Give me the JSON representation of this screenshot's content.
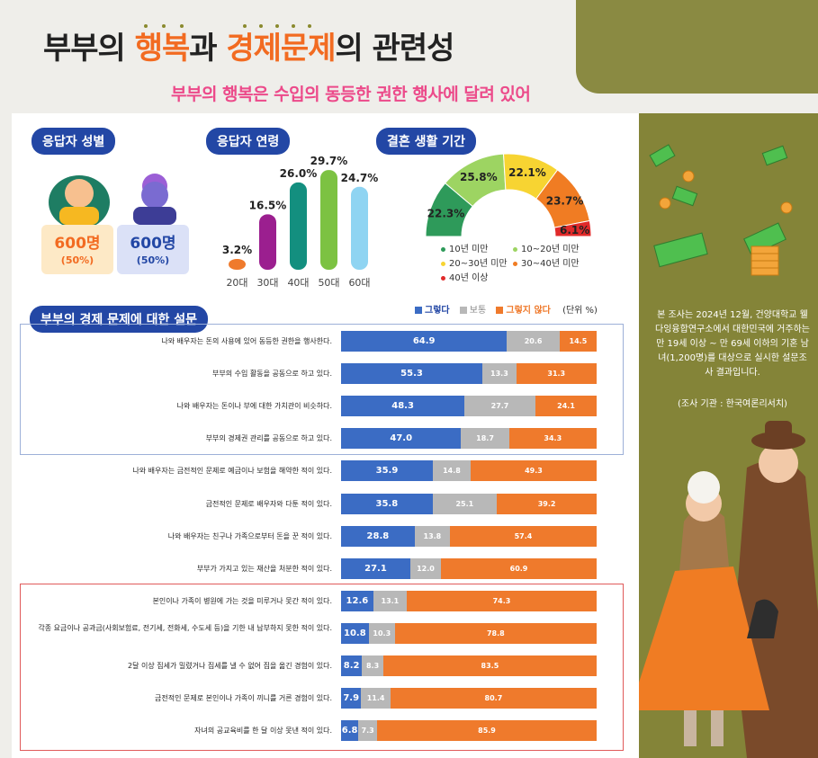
{
  "header": {
    "title_part1": "부부의 ",
    "title_part2": "행복",
    "title_part3": "과 ",
    "title_part4": "경제문제",
    "title_part5": "의 관련성",
    "subtitle": "부부의 행복은 수입의 동등한 권한 행사에 달려 있어"
  },
  "sections": {
    "gender": "응답자 성별",
    "age": "응답자 연령",
    "marriage": "결혼 생활 기간",
    "survey": "부부의 경제 문제에 대한 설문"
  },
  "colors": {
    "navy": "#2347a5",
    "blue": "#3b6cc4",
    "gray": "#b8b8b8",
    "orange": "#ef7a2c",
    "olive": "#848438"
  },
  "gender": {
    "female": {
      "count": "600명",
      "pct": "(50%)"
    },
    "male": {
      "count": "600명",
      "pct": "(50%)"
    }
  },
  "chart_data": [
    {
      "type": "bar",
      "title": "응답자 연령",
      "categories": [
        "20대",
        "30대",
        "40대",
        "50대",
        "60대"
      ],
      "values": [
        3.2,
        16.5,
        26.0,
        29.7,
        24.7
      ],
      "labels": [
        "3.2%",
        "16.5%",
        "26.0%",
        "29.7%",
        "24.7%"
      ],
      "colors": [
        "#ef7a2c",
        "#9b1f8f",
        "#138f7f",
        "#7cc242",
        "#8fd4f2"
      ]
    },
    {
      "type": "pie",
      "title": "결혼 생활 기간",
      "categories": [
        "10년 미만",
        "10~20년 미만",
        "20~30년 미만",
        "30~40년 미만",
        "40년 이상"
      ],
      "values": [
        22.3,
        25.8,
        22.1,
        23.7,
        6.1
      ],
      "labels": [
        "22.3%",
        "25.8%",
        "22.1%",
        "23.7%",
        "6.1%"
      ],
      "colors": [
        "#2e9a5a",
        "#9dd462",
        "#f7d432",
        "#f07c23",
        "#e02a2a"
      ]
    },
    {
      "type": "bar",
      "title": "부부의 경제 문제에 대한 설문",
      "unit": "(단위 %)",
      "series": [
        {
          "name": "그렇다",
          "color": "#3b6cc4"
        },
        {
          "name": "보통",
          "color": "#b8b8b8"
        },
        {
          "name": "그렇지 않다",
          "color": "#ef7a2c"
        }
      ],
      "rows": [
        {
          "label": "나와 배우자는 돈의 사용에 있어 동등한 권한을 행사한다.",
          "values": [
            64.9,
            20.6,
            14.5
          ],
          "labels": [
            "64.9",
            "20.6",
            "14.5"
          ]
        },
        {
          "label": "부부의 수입 활동을 공동으로 하고 있다.",
          "values": [
            55.3,
            13.3,
            31.3
          ],
          "labels": [
            "55.3",
            "13.3",
            "31.3"
          ]
        },
        {
          "label": "나와 배우자는 돈이나 부에 대한 가치관이 비슷하다.",
          "values": [
            48.3,
            27.7,
            24.1
          ],
          "labels": [
            "48.3",
            "27.7",
            "24.1"
          ]
        },
        {
          "label": "부부의 경제권 관리를 공동으로 하고 있다.",
          "values": [
            47.0,
            18.7,
            34.3
          ],
          "labels": [
            "47.0",
            "18.7",
            "34.3"
          ]
        },
        {
          "label": "나와 배우자는 금전적인 문제로 예금이나 보험을 해약한 적이 있다.",
          "values": [
            35.9,
            14.8,
            49.3
          ],
          "labels": [
            "35.9",
            "14.8",
            "49.3"
          ]
        },
        {
          "label": "금전적인 문제로 배우자와 다툰 적이 있다.",
          "values": [
            35.8,
            25.1,
            39.2
          ],
          "labels": [
            "35.8",
            "25.1",
            "39.2"
          ]
        },
        {
          "label": "나와 배우자는 친구나 가족으로부터 돈을 꾼 적이 있다.",
          "values": [
            28.8,
            13.8,
            57.4
          ],
          "labels": [
            "28.8",
            "13.8",
            "57.4"
          ]
        },
        {
          "label": "부부가 가지고 있는 재산을 처분한 적이 있다.",
          "values": [
            27.1,
            12.0,
            60.9
          ],
          "labels": [
            "27.1",
            "12.0",
            "60.9"
          ]
        },
        {
          "label": "본인이나 가족이 병원에 가는 것을 미루거나 못간 적이 있다.",
          "values": [
            12.6,
            13.1,
            74.3
          ],
          "labels": [
            "12.6",
            "13.1",
            "74.3"
          ]
        },
        {
          "label": "각종 요금이나 공과금(사회보험료, 전기세, 전화세, 수도세 등)을 기한 내 납부하지 못한 적이 있다.",
          "values": [
            10.8,
            10.3,
            78.8
          ],
          "labels": [
            "10.8",
            "10.3",
            "78.8"
          ]
        },
        {
          "label": "2달 이상 집세가 밀렸거나 집세를 낼 수 없어 집을 옮긴 경험이 있다.",
          "values": [
            8.2,
            8.3,
            83.5
          ],
          "labels": [
            "8.2",
            "8.3",
            "83.5"
          ]
        },
        {
          "label": "금전적인 문제로 본인이나 가족이 끼니를 거른 경험이 있다.",
          "values": [
            7.9,
            11.4,
            80.7
          ],
          "labels": [
            "7.9",
            "11.4",
            "80.7"
          ]
        },
        {
          "label": "자녀의 공교육비를 한 달 이상 못낸 적이 있다.",
          "values": [
            6.8,
            7.3,
            85.9
          ],
          "labels": [
            "6.8",
            "7.3",
            "85.9"
          ]
        }
      ]
    }
  ],
  "side": {
    "note": "본 조사는 2024년 12월, 건양대학교 웰다잉융합연구소에서 대한민국에 거주하는 만 19세 이상 ~ 만 69세 이하의 기혼 남녀(1,200명)를 대상으로 실시한 설문조사 결과입니다.",
    "source": "(조사 기관 : 한국여론리서치)"
  }
}
